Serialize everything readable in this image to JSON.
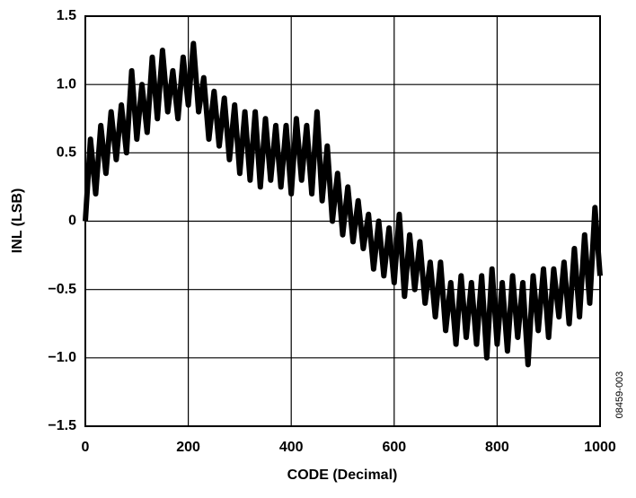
{
  "chart_data": {
    "type": "line",
    "xlabel": "CODE (Decimal)",
    "ylabel": "INL (LSB)",
    "annotation": "08459-003",
    "color": "#000000",
    "grid": true,
    "xlim": [
      0,
      1000
    ],
    "xticks": [
      0,
      200,
      400,
      600,
      800,
      1000
    ],
    "ylim": [
      -1.5,
      1.5
    ],
    "yticks": [
      {
        "value": -1.5,
        "label": "−1.5"
      },
      {
        "value": -1.0,
        "label": "−1.0"
      },
      {
        "value": -0.5,
        "label": "−0.5"
      },
      0,
      0.5,
      {
        "value": 1.0,
        "label": "1.0"
      },
      1.5
    ],
    "x": [
      0,
      10,
      20,
      30,
      40,
      50,
      60,
      70,
      80,
      90,
      100,
      110,
      120,
      130,
      140,
      150,
      160,
      170,
      180,
      190,
      200,
      210,
      220,
      230,
      240,
      250,
      260,
      270,
      280,
      290,
      300,
      310,
      320,
      330,
      340,
      350,
      360,
      370,
      380,
      390,
      400,
      410,
      420,
      430,
      440,
      450,
      460,
      470,
      480,
      490,
      500,
      510,
      520,
      530,
      540,
      550,
      560,
      570,
      580,
      590,
      600,
      610,
      620,
      630,
      640,
      650,
      660,
      670,
      680,
      690,
      700,
      710,
      720,
      730,
      740,
      750,
      760,
      770,
      780,
      790,
      800,
      810,
      820,
      830,
      840,
      850,
      860,
      870,
      880,
      890,
      900,
      910,
      920,
      930,
      940,
      950,
      960,
      970,
      980,
      990,
      1000
    ],
    "values": [
      0.0,
      0.6,
      0.2,
      0.7,
      0.35,
      0.8,
      0.45,
      0.85,
      0.5,
      1.1,
      0.6,
      1.0,
      0.65,
      1.2,
      0.75,
      1.25,
      0.8,
      1.1,
      0.75,
      1.2,
      0.85,
      1.3,
      0.8,
      1.05,
      0.6,
      0.95,
      0.55,
      0.9,
      0.45,
      0.85,
      0.35,
      0.8,
      0.3,
      0.8,
      0.25,
      0.75,
      0.3,
      0.7,
      0.25,
      0.7,
      0.2,
      0.75,
      0.3,
      0.7,
      0.2,
      0.8,
      0.15,
      0.55,
      0.0,
      0.35,
      -0.1,
      0.25,
      -0.15,
      0.15,
      -0.2,
      0.05,
      -0.35,
      0.0,
      -0.4,
      -0.05,
      -0.45,
      0.05,
      -0.55,
      -0.1,
      -0.5,
      -0.15,
      -0.6,
      -0.3,
      -0.7,
      -0.3,
      -0.8,
      -0.45,
      -0.9,
      -0.4,
      -0.85,
      -0.45,
      -0.9,
      -0.4,
      -1.0,
      -0.35,
      -0.9,
      -0.45,
      -0.95,
      -0.4,
      -0.85,
      -0.45,
      -1.05,
      -0.4,
      -0.8,
      -0.35,
      -0.85,
      -0.35,
      -0.7,
      -0.3,
      -0.75,
      -0.2,
      -0.7,
      -0.1,
      -0.6,
      0.1,
      -0.4
    ]
  }
}
